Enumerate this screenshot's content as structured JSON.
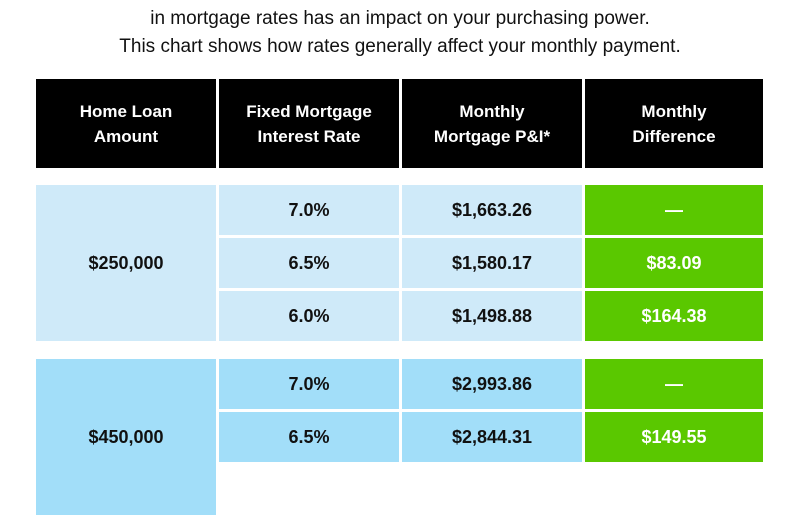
{
  "intro": {
    "line1": "",
    "line2": "in mortgage rates has an impact on your purchasing power.",
    "line3": "This chart shows how rates generally affect your monthly payment."
  },
  "colors": {
    "header_bg": "#000000",
    "group1_bg": "#cfeaf9",
    "group2_bg": "#a2def9",
    "diff_bg": "#5ac800"
  },
  "chart_data": {
    "type": "table",
    "title": "",
    "columns": [
      {
        "l1": "Home Loan",
        "l2": "Amount"
      },
      {
        "l1": "Fixed Mortgage",
        "l2": "Interest Rate"
      },
      {
        "l1": "Monthly",
        "l2": "Mortgage P&I*"
      },
      {
        "l1": "Monthly",
        "l2": "Difference"
      }
    ],
    "groups": [
      {
        "amount": "$250,000",
        "rows": [
          {
            "rate": "7.0%",
            "payment": "$1,663.26",
            "difference": "—"
          },
          {
            "rate": "6.5%",
            "payment": "$1,580.17",
            "difference": "$83.09"
          },
          {
            "rate": "6.0%",
            "payment": "$1,498.88",
            "difference": "$164.38"
          }
        ]
      },
      {
        "amount": "$450,000",
        "rows": [
          {
            "rate": "7.0%",
            "payment": "$2,993.86",
            "difference": "—"
          },
          {
            "rate": "6.5%",
            "payment": "$2,844.31",
            "difference": "$149.55"
          }
        ]
      }
    ]
  }
}
